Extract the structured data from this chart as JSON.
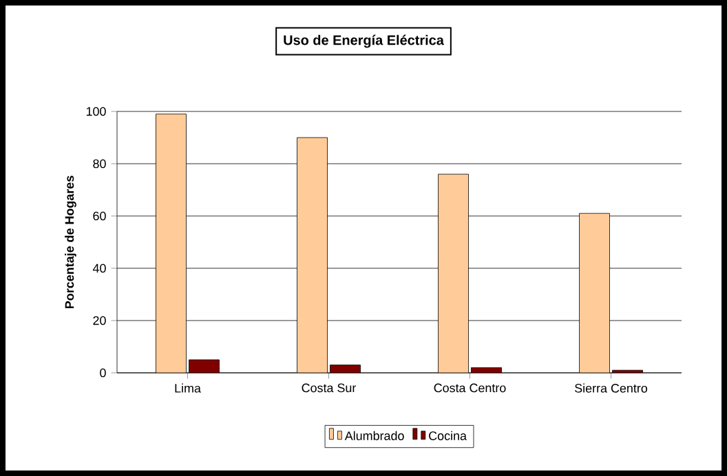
{
  "chart_data": {
    "type": "bar",
    "title": "Uso de Energía Eléctrica",
    "ylabel": "Porcentaje de Hogares",
    "categories": [
      "Lima",
      "Costa Sur",
      "Costa Centro",
      "Sierra Centro"
    ],
    "series": [
      {
        "name": "Alumbrado",
        "color": "#ffcc99",
        "values": [
          99,
          90,
          76,
          61
        ]
      },
      {
        "name": "Cocina",
        "color": "#800000",
        "values": [
          5,
          3,
          2,
          1
        ]
      }
    ],
    "ylim": [
      0,
      100
    ],
    "yticks": [
      0,
      20,
      40,
      60,
      80,
      100
    ],
    "grid": "y",
    "legend": "bottom"
  }
}
